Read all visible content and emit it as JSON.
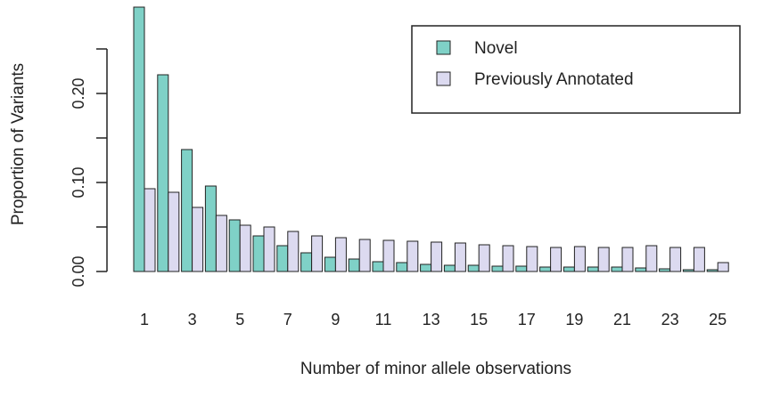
{
  "chart_data": {
    "type": "bar",
    "title": "",
    "xlabel": "Number of minor allele observations",
    "ylabel": "Proportion of Variants",
    "ylim": [
      0,
      0.3
    ],
    "yticks": [
      0.0,
      0.1,
      0.2
    ],
    "ytick_labels": [
      "0.00",
      "0.10",
      "0.20"
    ],
    "categories": [
      1,
      2,
      3,
      4,
      5,
      6,
      7,
      8,
      9,
      10,
      11,
      12,
      13,
      14,
      15,
      16,
      17,
      18,
      19,
      20,
      21,
      22,
      23,
      24,
      25
    ],
    "xtick_labels": [
      "1",
      "3",
      "5",
      "7",
      "9",
      "11",
      "13",
      "15",
      "17",
      "19",
      "21",
      "23",
      "25"
    ],
    "legend_position": "top-right",
    "series": [
      {
        "name": "Novel",
        "color": "#7fd1c7",
        "values": [
          0.297,
          0.221,
          0.137,
          0.096,
          0.058,
          0.04,
          0.029,
          0.021,
          0.016,
          0.014,
          0.011,
          0.01,
          0.008,
          0.007,
          0.007,
          0.006,
          0.006,
          0.005,
          0.005,
          0.005,
          0.005,
          0.004,
          0.003,
          0.002,
          0.002
        ]
      },
      {
        "name": "Previously Annotated",
        "color": "#dcdaf0",
        "values": [
          0.093,
          0.089,
          0.072,
          0.063,
          0.052,
          0.05,
          0.045,
          0.04,
          0.038,
          0.036,
          0.035,
          0.034,
          0.033,
          0.032,
          0.03,
          0.029,
          0.028,
          0.027,
          0.028,
          0.027,
          0.027,
          0.029,
          0.027,
          0.027,
          0.01
        ]
      }
    ]
  }
}
